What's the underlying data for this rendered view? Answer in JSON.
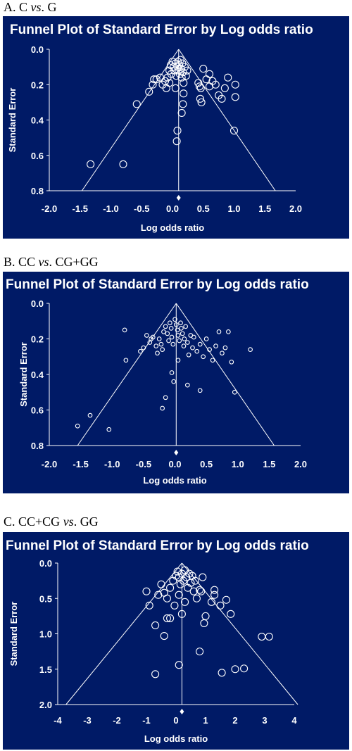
{
  "panels": [
    {
      "prefix": "A. C ",
      "vs": "vs",
      "suffix": ". G"
    },
    {
      "prefix": "B. CC ",
      "vs": "vs",
      "suffix": ". CG+GG"
    },
    {
      "prefix": "C. CC+CG ",
      "vs": "vs",
      "suffix": ". GG"
    }
  ],
  "chart_data": [
    {
      "type": "scatter",
      "title": "Funnel Plot of Standard Error by Log odds ratio",
      "xlabel": "Log odds ratio",
      "ylabel": "Standard Error",
      "xlim": [
        -2.0,
        2.0
      ],
      "ylim": [
        0.0,
        0.8
      ],
      "y_reversed": true,
      "xticks": [
        "-2.0",
        "-1.5",
        "-1.0",
        "-0.5",
        "0.0",
        "0.5",
        "1.0",
        "1.5",
        "2.0"
      ],
      "yticks": [
        "0.0",
        "0.2",
        "0.4",
        "0.6",
        "0.8"
      ],
      "pooled_estimate": 0.1,
      "funnel": {
        "apex": [
          0.1,
          0.0
        ],
        "left": [
          -1.47,
          0.8
        ],
        "right": [
          1.67,
          0.8
        ]
      },
      "points": [
        [
          -1.33,
          0.65
        ],
        [
          -0.8,
          0.65
        ],
        [
          0.07,
          0.52
        ],
        [
          0.08,
          0.46
        ],
        [
          0.15,
          0.36
        ],
        [
          0.17,
          0.31
        ],
        [
          -0.58,
          0.31
        ],
        [
          -0.38,
          0.24
        ],
        [
          -0.32,
          0.2
        ],
        [
          -0.3,
          0.17
        ],
        [
          -0.26,
          0.17
        ],
        [
          -0.2,
          0.16
        ],
        [
          -0.16,
          0.2
        ],
        [
          -0.12,
          0.18
        ],
        [
          -0.1,
          0.22
        ],
        [
          -0.08,
          0.16
        ],
        [
          -0.05,
          0.12
        ],
        [
          -0.03,
          0.09
        ],
        [
          -0.02,
          0.14
        ],
        [
          0.0,
          0.07
        ],
        [
          0.02,
          0.1
        ],
        [
          0.03,
          0.12
        ],
        [
          0.05,
          0.08
        ],
        [
          0.06,
          0.15
        ],
        [
          0.08,
          0.1
        ],
        [
          0.09,
          0.07
        ],
        [
          0.1,
          0.12
        ],
        [
          0.11,
          0.09
        ],
        [
          0.12,
          0.14
        ],
        [
          0.13,
          0.06
        ],
        [
          0.14,
          0.11
        ],
        [
          0.15,
          0.16
        ],
        [
          0.16,
          0.08
        ],
        [
          0.17,
          0.13
        ],
        [
          0.18,
          0.19
        ],
        [
          0.2,
          0.1
        ],
        [
          0.22,
          0.15
        ],
        [
          0.24,
          0.12
        ],
        [
          0.18,
          0.25
        ],
        [
          0.05,
          0.22
        ],
        [
          -0.05,
          0.19
        ],
        [
          0.42,
          0.19
        ],
        [
          0.44,
          0.21
        ],
        [
          0.46,
          0.22
        ],
        [
          0.45,
          0.28
        ],
        [
          0.47,
          0.3
        ],
        [
          0.5,
          0.11
        ],
        [
          0.55,
          0.17
        ],
        [
          0.6,
          0.14
        ],
        [
          0.6,
          0.21
        ],
        [
          0.65,
          0.18
        ],
        [
          0.7,
          0.2
        ],
        [
          0.75,
          0.26
        ],
        [
          0.8,
          0.28
        ],
        [
          0.85,
          0.22
        ],
        [
          0.9,
          0.16
        ],
        [
          1.02,
          0.2
        ],
        [
          1.02,
          0.27
        ],
        [
          1.0,
          0.46
        ]
      ]
    },
    {
      "type": "scatter",
      "title": "Funnel Plot of Standard Error by Log odds ratio",
      "xlabel": "Log odds ratio",
      "ylabel": "Standard Error",
      "xlim": [
        -2.0,
        2.0
      ],
      "ylim": [
        0.0,
        0.8
      ],
      "y_reversed": true,
      "xticks": [
        "-2.0",
        "-1.5",
        "-1.0",
        "-0.5",
        "0.0",
        "0.5",
        "1.0",
        "1.5",
        "2.0"
      ],
      "yticks": [
        "0.0",
        "0.2",
        "0.4",
        "0.6",
        "0.8"
      ],
      "pooled_estimate": 0.02,
      "funnel": {
        "apex": [
          0.02,
          0.0
        ],
        "left": [
          -1.55,
          0.8
        ],
        "right": [
          1.58,
          0.8
        ]
      },
      "points": [
        [
          -1.55,
          0.69
        ],
        [
          -1.35,
          0.63
        ],
        [
          -1.05,
          0.71
        ],
        [
          -0.8,
          0.15
        ],
        [
          -0.78,
          0.32
        ],
        [
          -0.55,
          0.27
        ],
        [
          -0.5,
          0.25
        ],
        [
          -0.45,
          0.18
        ],
        [
          -0.4,
          0.22
        ],
        [
          -0.38,
          0.2
        ],
        [
          -0.35,
          0.19
        ],
        [
          -0.3,
          0.24
        ],
        [
          -0.28,
          0.28
        ],
        [
          -0.25,
          0.2
        ],
        [
          -0.22,
          0.23
        ],
        [
          -0.2,
          0.26
        ],
        [
          -0.18,
          0.16
        ],
        [
          -0.15,
          0.13
        ],
        [
          -0.12,
          0.17
        ],
        [
          -0.1,
          0.21
        ],
        [
          -0.08,
          0.11
        ],
        [
          -0.06,
          0.14
        ],
        [
          -0.05,
          0.19
        ],
        [
          -0.03,
          0.23
        ],
        [
          0.0,
          0.09
        ],
        [
          0.02,
          0.12
        ],
        [
          0.04,
          0.15
        ],
        [
          0.05,
          0.18
        ],
        [
          0.07,
          0.21
        ],
        [
          0.09,
          0.11
        ],
        [
          0.1,
          0.14
        ],
        [
          0.12,
          0.17
        ],
        [
          0.14,
          0.24
        ],
        [
          0.15,
          0.2
        ],
        [
          0.17,
          0.13
        ],
        [
          0.2,
          0.22
        ],
        [
          0.22,
          0.29
        ],
        [
          0.25,
          0.18
        ],
        [
          0.28,
          0.25
        ],
        [
          0.3,
          0.19
        ],
        [
          0.35,
          0.27
        ],
        [
          0.4,
          0.23
        ],
        [
          0.45,
          0.3
        ],
        [
          0.5,
          0.2
        ],
        [
          0.55,
          0.26
        ],
        [
          0.6,
          0.32
        ],
        [
          0.65,
          0.24
        ],
        [
          0.7,
          0.16
        ],
        [
          0.75,
          0.28
        ],
        [
          0.8,
          0.25
        ],
        [
          0.85,
          0.16
        ],
        [
          0.9,
          0.33
        ],
        [
          1.2,
          0.26
        ],
        [
          -0.05,
          0.39
        ],
        [
          -0.02,
          0.44
        ],
        [
          -0.15,
          0.53
        ],
        [
          -0.2,
          0.59
        ],
        [
          0.2,
          0.46
        ],
        [
          0.4,
          0.49
        ],
        [
          0.95,
          0.5
        ],
        [
          0.05,
          0.32
        ]
      ]
    },
    {
      "type": "scatter",
      "title": "Funnel Plot of Standard Error by Log odds ratio",
      "xlabel": "Log odds ratio",
      "ylabel": "Standard Error",
      "xlim": [
        -4,
        4
      ],
      "ylim": [
        0.0,
        2.0
      ],
      "y_reversed": true,
      "xticks": [
        "-4",
        "-3",
        "-2",
        "-1",
        "0",
        "1",
        "2",
        "3",
        "4"
      ],
      "yticks": [
        "0.0",
        "0.5",
        "1.0",
        "1.5",
        "2.0"
      ],
      "pooled_estimate": 0.2,
      "funnel": {
        "apex": [
          0.2,
          0.0
        ],
        "left": [
          -3.72,
          2.0
        ],
        "right": [
          4.12,
          2.0
        ]
      },
      "points": [
        [
          -1.0,
          0.4
        ],
        [
          -0.9,
          0.6
        ],
        [
          -0.7,
          0.88
        ],
        [
          -0.7,
          1.57
        ],
        [
          -0.5,
          0.3
        ],
        [
          -0.4,
          1.03
        ],
        [
          -0.3,
          0.78
        ],
        [
          -0.2,
          0.78
        ],
        [
          -0.3,
          0.5
        ],
        [
          -0.2,
          0.35
        ],
        [
          -0.1,
          0.25
        ],
        [
          0.0,
          0.18
        ],
        [
          0.05,
          0.12
        ],
        [
          0.1,
          0.2
        ],
        [
          0.15,
          0.3
        ],
        [
          0.2,
          0.15
        ],
        [
          0.25,
          0.25
        ],
        [
          0.3,
          0.1
        ],
        [
          0.35,
          0.2
        ],
        [
          0.4,
          0.35
        ],
        [
          0.45,
          0.15
        ],
        [
          0.5,
          0.28
        ],
        [
          0.55,
          0.18
        ],
        [
          0.6,
          0.4
        ],
        [
          0.65,
          0.25
        ],
        [
          0.7,
          0.5
        ],
        [
          -0.6,
          0.45
        ],
        [
          -0.4,
          0.42
        ],
        [
          0.1,
          0.45
        ],
        [
          0.3,
          0.55
        ],
        [
          0.8,
          0.38
        ],
        [
          0.85,
          0.4
        ],
        [
          0.9,
          0.2
        ],
        [
          1.0,
          0.75
        ],
        [
          0.95,
          0.85
        ],
        [
          1.2,
          0.55
        ],
        [
          1.3,
          0.45
        ],
        [
          1.5,
          0.6
        ],
        [
          1.7,
          0.52
        ],
        [
          1.85,
          0.72
        ],
        [
          1.3,
          0.38
        ],
        [
          0.1,
          1.44
        ],
        [
          0.8,
          1.25
        ],
        [
          1.55,
          1.55
        ],
        [
          2.0,
          1.5
        ],
        [
          2.3,
          1.49
        ],
        [
          2.9,
          1.04
        ],
        [
          3.15,
          1.04
        ],
        [
          0.2,
          0.72
        ],
        [
          -0.05,
          0.6
        ]
      ]
    }
  ]
}
